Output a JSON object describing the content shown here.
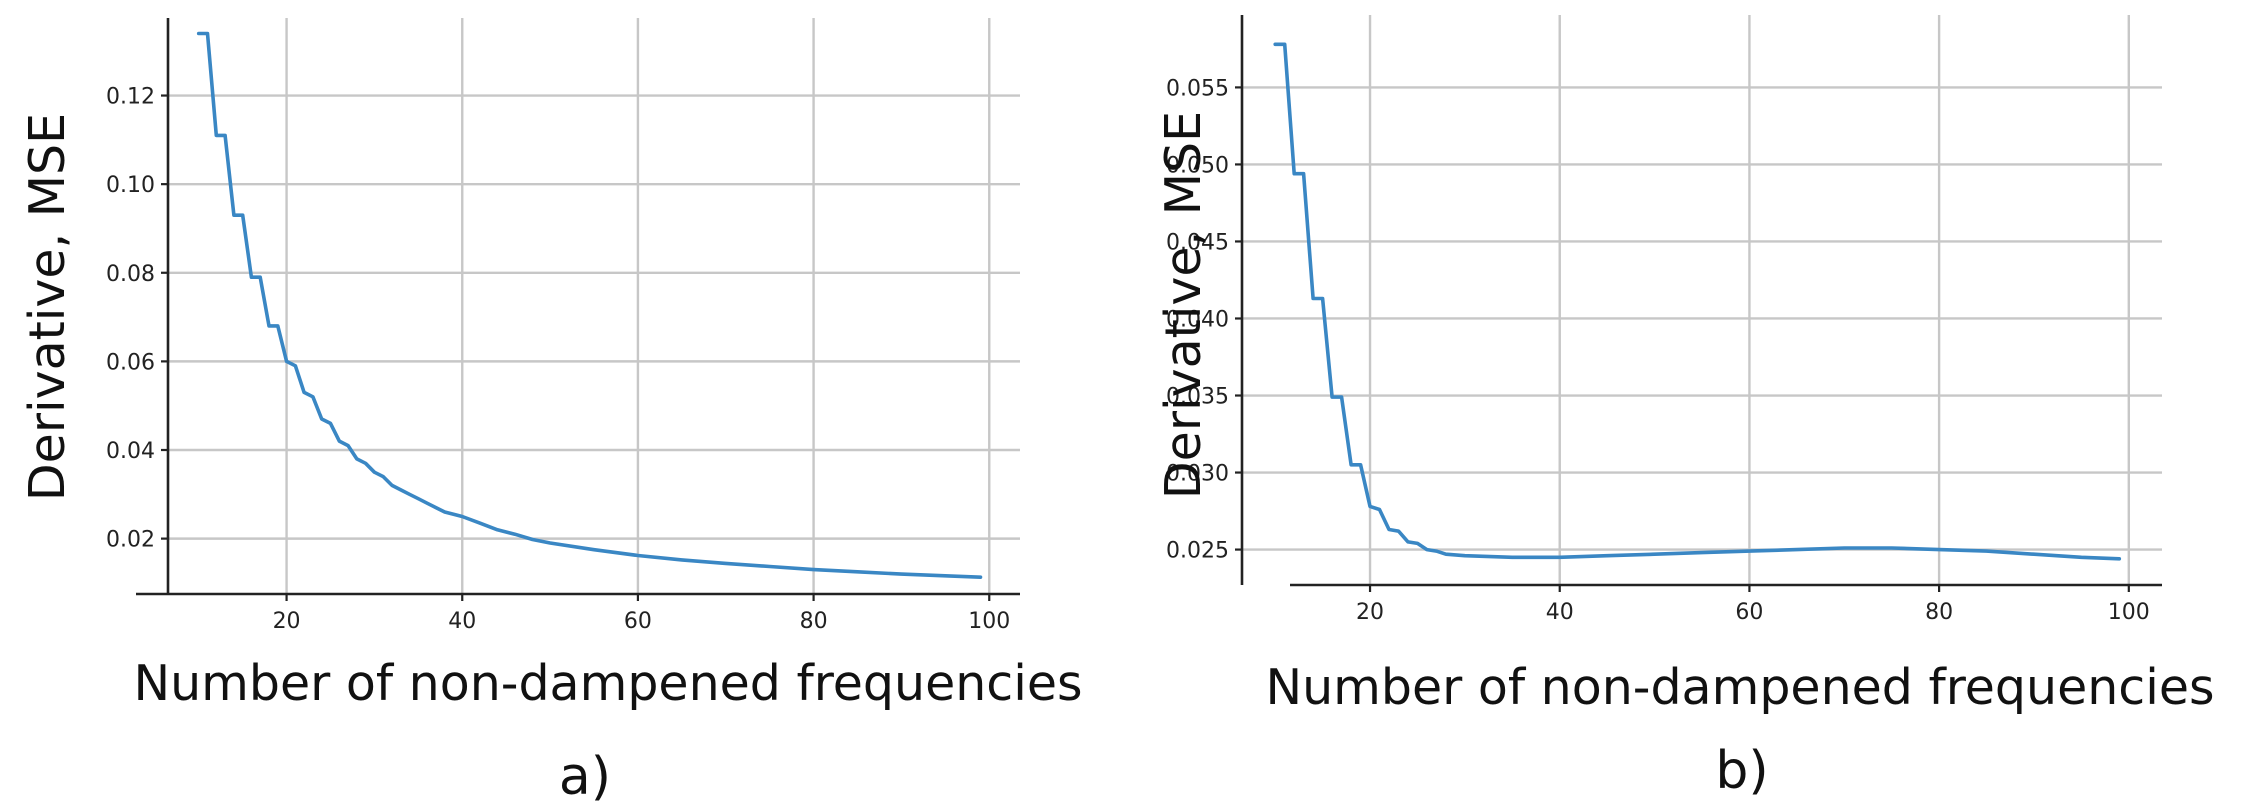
{
  "series_color": "#3a87c4",
  "chart_data": [
    {
      "type": "line",
      "panel_label": "a)",
      "xlabel": "Number of non-dampened frequencies",
      "ylabel": "Derivative, MSE",
      "xlim": [
        6.5,
        103.5
      ],
      "ylim": [
        0.0075,
        0.1375
      ],
      "xticks": [
        20,
        40,
        60,
        80,
        100
      ],
      "xtick_labels": [
        "20",
        "40",
        "60",
        "80",
        "100"
      ],
      "yticks": [
        0.02,
        0.04,
        0.06,
        0.08,
        0.1,
        0.12
      ],
      "ytick_labels": [
        "0.02",
        "0.04",
        "0.06",
        "0.08",
        "0.10",
        "0.12"
      ],
      "grid": true,
      "series": [
        {
          "x": [
            10,
            11,
            12,
            13,
            14,
            15,
            16,
            17,
            18,
            19,
            20,
            21,
            22,
            23,
            24,
            25,
            26,
            27,
            28,
            29,
            30,
            31,
            32,
            33,
            34,
            35,
            36,
            37,
            38,
            39,
            40,
            42,
            44,
            46,
            48,
            50,
            55,
            60,
            65,
            70,
            75,
            80,
            85,
            90,
            95,
            99
          ],
          "y": [
            0.134,
            0.134,
            0.111,
            0.111,
            0.093,
            0.093,
            0.079,
            0.079,
            0.068,
            0.068,
            0.06,
            0.059,
            0.053,
            0.052,
            0.047,
            0.046,
            0.042,
            0.041,
            0.038,
            0.037,
            0.035,
            0.034,
            0.032,
            0.031,
            0.03,
            0.029,
            0.028,
            0.027,
            0.026,
            0.0255,
            0.025,
            0.0235,
            0.022,
            0.021,
            0.0198,
            0.019,
            0.0175,
            0.0162,
            0.0152,
            0.0144,
            0.0137,
            0.013,
            0.0125,
            0.012,
            0.0116,
            0.0113
          ]
        }
      ]
    },
    {
      "type": "line",
      "panel_label": "b)",
      "xlabel": "Number of non-dampened frequencies",
      "ylabel": "Derivative, MSE",
      "xlim": [
        6.5,
        103.5
      ],
      "ylim": [
        0.0227,
        0.0597
      ],
      "xticks": [
        20,
        40,
        60,
        80,
        100
      ],
      "xtick_labels": [
        "20",
        "40",
        "60",
        "80",
        "100"
      ],
      "yticks": [
        0.025,
        0.03,
        0.035,
        0.04,
        0.045,
        0.05,
        0.055
      ],
      "ytick_labels": [
        "0.025",
        "0.030",
        "0.035",
        "0.040",
        "0.045",
        "0.050",
        "0.055"
      ],
      "grid": true,
      "series": [
        {
          "x": [
            10,
            11,
            12,
            13,
            14,
            15,
            16,
            17,
            18,
            19,
            20,
            21,
            22,
            23,
            24,
            25,
            26,
            27,
            28,
            30,
            35,
            40,
            45,
            50,
            55,
            60,
            65,
            70,
            75,
            80,
            85,
            90,
            95,
            99
          ],
          "y": [
            0.0578,
            0.0578,
            0.0494,
            0.0494,
            0.0413,
            0.0413,
            0.0349,
            0.0349,
            0.0305,
            0.0305,
            0.0278,
            0.0276,
            0.0263,
            0.0262,
            0.0255,
            0.0254,
            0.025,
            0.0249,
            0.0247,
            0.0246,
            0.0245,
            0.0245,
            0.0246,
            0.0247,
            0.0248,
            0.0249,
            0.025,
            0.0251,
            0.0251,
            0.025,
            0.0249,
            0.0247,
            0.0245,
            0.0244
          ]
        }
      ]
    }
  ]
}
